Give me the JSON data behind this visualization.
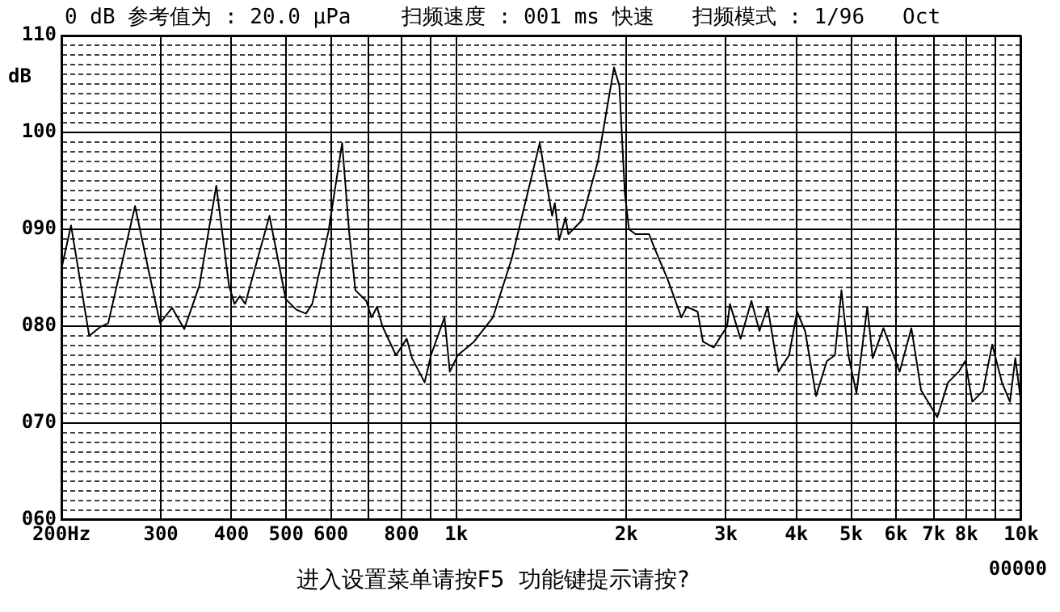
{
  "chart_data": {
    "type": "line",
    "title": "0 dB 参考值为 : 20.0 μPa    扫频速度 : 001 ms 快速   扫频模式 : 1/96   Oct",
    "ylabel": "dB",
    "annotations": [
      "进入设置菜单请按F5  功能键提示请按?",
      "00000"
    ],
    "log": "x",
    "grid": true,
    "legend": false,
    "marker": "none",
    "line_style": "solid",
    "xlim": [
      200,
      10000
    ],
    "xticks": [
      {
        "value": 200,
        "label": "200Hz"
      },
      300,
      400,
      500,
      600,
      {
        "value": 700,
        "label": null
      },
      800,
      {
        "value": 900,
        "label": null
      },
      {
        "value": 1000,
        "label": "1k"
      },
      {
        "value": 2000,
        "label": "2k"
      },
      {
        "value": 3000,
        "label": "3k"
      },
      {
        "value": 4000,
        "label": "4k"
      },
      {
        "value": 5000,
        "label": "5k"
      },
      {
        "value": 6000,
        "label": "6k"
      },
      {
        "value": 7000,
        "label": "7k"
      },
      {
        "value": 8000,
        "label": "8k"
      },
      {
        "value": 9000,
        "label": null
      },
      {
        "value": 10000,
        "label": "10k"
      }
    ],
    "ylim": [
      60,
      110
    ],
    "yticks": [
      {
        "value": 60,
        "label": "060"
      },
      {
        "value": 61,
        "label": null
      },
      {
        "value": 62,
        "label": null
      },
      {
        "value": 63,
        "label": null
      },
      {
        "value": 64,
        "label": null
      },
      {
        "value": 65,
        "label": null
      },
      {
        "value": 66,
        "label": null
      },
      {
        "value": 67,
        "label": null
      },
      {
        "value": 68,
        "label": null
      },
      {
        "value": 69,
        "label": null
      },
      {
        "value": 70,
        "label": "070"
      },
      {
        "value": 71,
        "label": null
      },
      {
        "value": 72,
        "label": null
      },
      {
        "value": 73,
        "label": null
      },
      {
        "value": 74,
        "label": null
      },
      {
        "value": 75,
        "label": null
      },
      {
        "value": 76,
        "label": null
      },
      {
        "value": 77,
        "label": null
      },
      {
        "value": 78,
        "label": null
      },
      {
        "value": 79,
        "label": null
      },
      {
        "value": 80,
        "label": "080"
      },
      {
        "value": 81,
        "label": null
      },
      {
        "value": 82,
        "label": null
      },
      {
        "value": 83,
        "label": null
      },
      {
        "value": 84,
        "label": null
      },
      {
        "value": 85,
        "label": null
      },
      {
        "value": 86,
        "label": null
      },
      {
        "value": 87,
        "label": null
      },
      {
        "value": 88,
        "label": null
      },
      {
        "value": 89,
        "label": null
      },
      {
        "value": 90,
        "label": "090"
      },
      {
        "value": 91,
        "label": null
      },
      {
        "value": 92,
        "label": null
      },
      {
        "value": 93,
        "label": null
      },
      {
        "value": 94,
        "label": null
      },
      {
        "value": 95,
        "label": null
      },
      {
        "value": 96,
        "label": null
      },
      {
        "value": 97,
        "label": null
      },
      {
        "value": 98,
        "label": null
      },
      {
        "value": 99,
        "label": null
      },
      100,
      {
        "value": 101,
        "label": null
      },
      {
        "value": 102,
        "label": null
      },
      {
        "value": 103,
        "label": null
      },
      {
        "value": 104,
        "label": null
      },
      {
        "value": 105,
        "label": null
      },
      {
        "value": 106,
        "label": null
      },
      {
        "value": 107,
        "label": null
      },
      {
        "value": 108,
        "label": null
      },
      {
        "value": 109,
        "label": null
      },
      110
    ],
    "series": [
      {
        "color": "#000000",
        "x": [
          200,
          208,
          224,
          234,
          242,
          270,
          285,
          299,
          314,
          330,
          351,
          376,
          396,
          405,
          414,
          423,
          467,
          499,
          521,
          542,
          556,
          594,
          628,
          646,
          663,
          693,
          708,
          724,
          740,
          782,
          817,
          835,
          879,
          902,
          953,
          974,
          1006,
          1075,
          1161,
          1254,
          1405,
          1478,
          1494,
          1521,
          1561,
          1579,
          1667,
          1781,
          1902,
          1944,
          1988,
          2022,
          2076,
          2194,
          2242,
          2368,
          2503,
          2558,
          2674,
          2733,
          2856,
          3016,
          3050,
          3186,
          3330,
          3441,
          3557,
          3717,
          3882,
          4011,
          4145,
          4333,
          4529,
          4680,
          4806,
          4944,
          5109,
          5340,
          5458,
          5703,
          6092,
          6391,
          6648,
          6871,
          7101,
          7422,
          7752,
          7959,
          8193,
          8557,
          8884,
          9243,
          9551,
          9762,
          10000
        ],
        "values": [
          85.9,
          90.4,
          79.0,
          79.9,
          80.3,
          92.4,
          85.9,
          80.3,
          81.9,
          79.7,
          84.2,
          94.5,
          84.2,
          82.3,
          83.1,
          82.3,
          91.4,
          82.8,
          81.7,
          81.3,
          82.3,
          89.8,
          98.9,
          89.8,
          83.7,
          82.6,
          80.9,
          82.0,
          80.0,
          77.0,
          78.7,
          76.7,
          74.2,
          77.0,
          80.9,
          75.3,
          77.0,
          78.4,
          80.9,
          87.0,
          98.9,
          91.4,
          92.7,
          88.9,
          91.2,
          89.5,
          90.9,
          97.0,
          106.7,
          104.8,
          93.7,
          90.0,
          89.5,
          89.5,
          88.1,
          84.8,
          80.9,
          82.0,
          81.5,
          78.4,
          77.8,
          80.0,
          82.3,
          78.7,
          82.6,
          79.5,
          82.0,
          75.3,
          77.0,
          81.5,
          79.5,
          72.8,
          76.4,
          77.0,
          83.7,
          77.0,
          73.1,
          82.0,
          76.7,
          79.8,
          75.3,
          79.8,
          73.4,
          72.0,
          70.6,
          74.2,
          75.3,
          76.4,
          72.2,
          73.3,
          78.1,
          74.2,
          72.2,
          76.7,
          72.0
        ]
      }
    ]
  }
}
